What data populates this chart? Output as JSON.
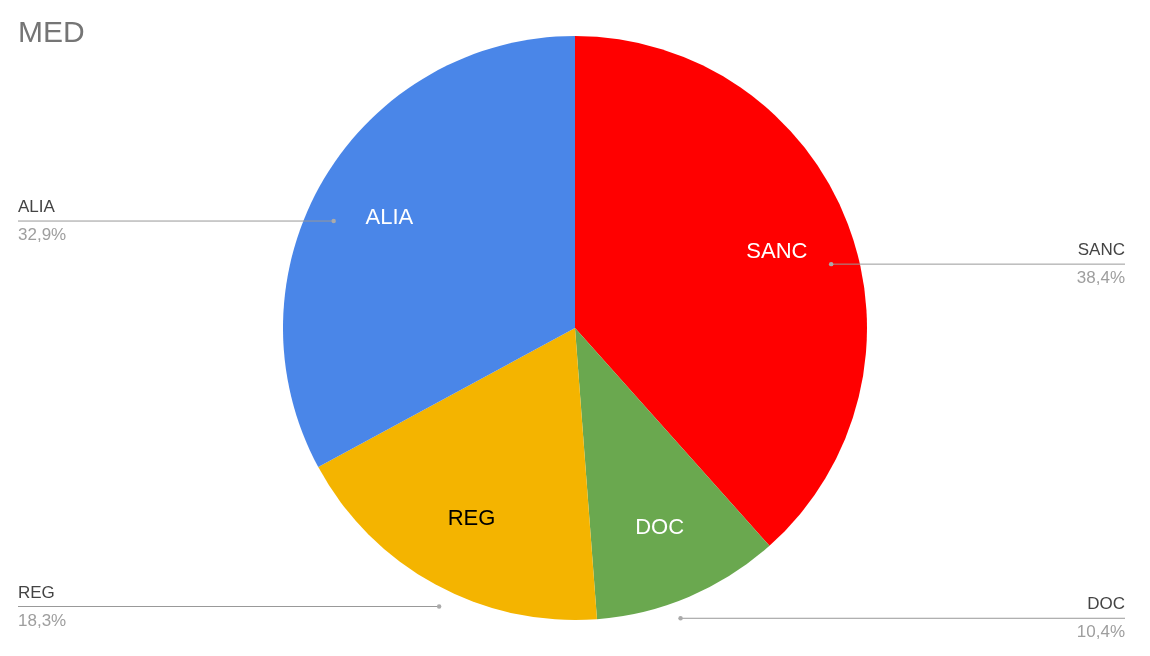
{
  "chart_data": {
    "type": "pie",
    "title": "MED",
    "categories": [
      "SANC",
      "DOC",
      "REG",
      "ALIA"
    ],
    "values": [
      38.4,
      10.4,
      18.3,
      32.9
    ],
    "colors": [
      "#ff0000",
      "#6aa84f",
      "#f4b400",
      "#4a86e8"
    ],
    "value_labels": [
      "38,4%",
      "10,4%",
      "18,3%",
      "32,9%"
    ]
  }
}
